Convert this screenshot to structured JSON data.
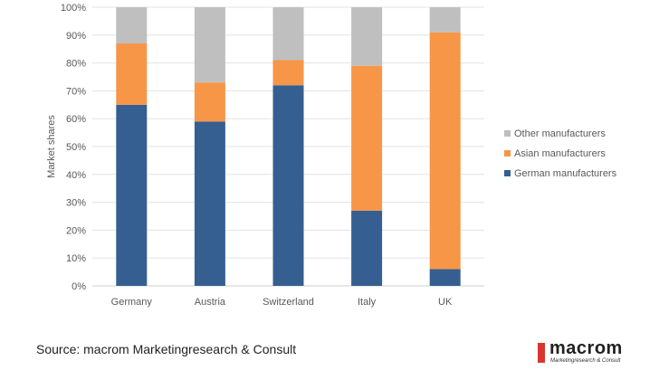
{
  "chart_data": {
    "type": "bar",
    "stacked": true,
    "categories": [
      "Germany",
      "Austria",
      "Switzerland",
      "Italy",
      "UK"
    ],
    "series": [
      {
        "name": "German manufacturers",
        "color": "#365F91",
        "values": [
          65,
          59,
          72,
          27,
          6
        ]
      },
      {
        "name": "Asian manufacturers",
        "color": "#F79646",
        "values": [
          22,
          14,
          9,
          52,
          85
        ]
      },
      {
        "name": "Other manufacturers",
        "color": "#BFBFBF",
        "values": [
          13,
          27,
          19,
          21,
          9
        ]
      }
    ],
    "ylabel": "Market shares",
    "ylim": [
      0,
      100
    ],
    "yticks": [
      "0%",
      "10%",
      "20%",
      "30%",
      "40%",
      "50%",
      "60%",
      "70%",
      "80%",
      "90%",
      "100%"
    ],
    "grid": true,
    "legend": "right"
  },
  "source": "Source: macrom Marketingresearch & Consult",
  "logo": {
    "name": "macrom",
    "tagline": "Marketingresearch & Consult"
  }
}
